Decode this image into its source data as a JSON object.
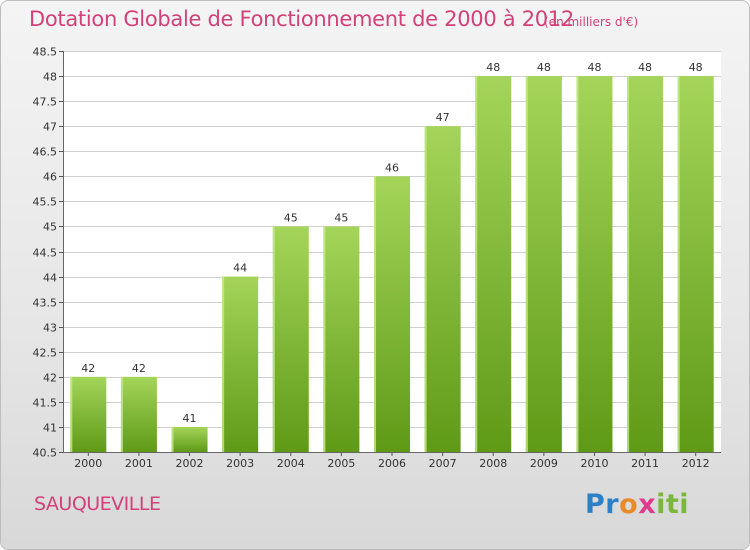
{
  "title": "Dotation Globale de Fonctionnement de 2000 à 2012",
  "subtitle": "(en milliers d'€)",
  "commune": "SAUQUEVILLE",
  "logo_text": "Proxiti",
  "colors": {
    "title": "#d3407a",
    "bar_light": "#a4d55a",
    "bar_dark": "#5f9a17",
    "logo_blue": "#2e7fc6",
    "logo_orange": "#e88a2a",
    "logo_pink": "#e03a8c",
    "logo_green": "#7ab83c"
  },
  "chart_data": {
    "type": "bar",
    "title": "Dotation Globale de Fonctionnement de 2000 à 2012",
    "subtitle": "(en milliers d'€)",
    "xlabel": "",
    "ylabel": "",
    "categories": [
      "2000",
      "2001",
      "2002",
      "2003",
      "2004",
      "2005",
      "2006",
      "2007",
      "2008",
      "2009",
      "2010",
      "2011",
      "2012"
    ],
    "values": [
      42,
      42,
      41,
      44,
      45,
      45,
      46,
      47,
      48,
      48,
      48,
      48,
      48
    ],
    "ylim": [
      40.5,
      48.5
    ],
    "yticks": [
      "40.5",
      "41",
      "41.5",
      "42",
      "42.5",
      "43",
      "43.5",
      "44",
      "44.5",
      "45",
      "45.5",
      "46",
      "46.5",
      "47",
      "47.5",
      "48",
      "48.5"
    ],
    "grid": true,
    "legend": "none"
  }
}
